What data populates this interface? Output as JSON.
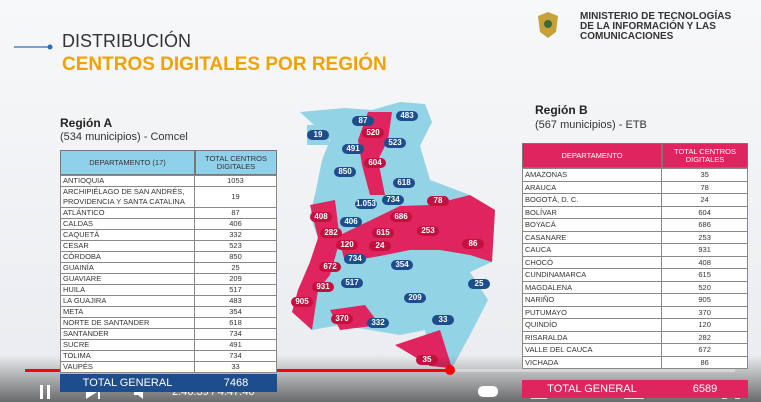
{
  "slide": {
    "title": "DISTRIBUCIÓN",
    "subtitle": "CENTROS DIGITALES POR REGIÓN",
    "ministry": [
      "MINISTERIO DE TECNOLOGÍAS",
      "DE LA INFORMACIÓN Y LAS",
      "COMUNICACIONES"
    ],
    "region_a": {
      "name": "Región A",
      "note": "(534 municipios) - Comcel",
      "header": [
        "DEPARTAMENTO (17)",
        "TOTAL CENTROS DIGITALES"
      ],
      "rows": [
        [
          "ANTIOQUIA",
          "1053"
        ],
        [
          "ARCHIPIÉLAGO DE SAN ANDRÉS, PROVIDENCIA Y SANTA CATALINA",
          "19"
        ],
        [
          "ATLÁNTICO",
          "87"
        ],
        [
          "CALDAS",
          "406"
        ],
        [
          "CAQUETÁ",
          "332"
        ],
        [
          "CESAR",
          "523"
        ],
        [
          "CÓRDOBA",
          "850"
        ],
        [
          "GUAINÍA",
          "25"
        ],
        [
          "GUAVIARE",
          "209"
        ],
        [
          "HUILA",
          "517"
        ],
        [
          "LA GUAJIRA",
          "483"
        ],
        [
          "META",
          "354"
        ],
        [
          "NORTE DE SANTANDER",
          "618"
        ],
        [
          "SANTANDER",
          "734"
        ],
        [
          "SUCRE",
          "491"
        ],
        [
          "TOLIMA",
          "734"
        ],
        [
          "VAUPÉS",
          "33"
        ]
      ],
      "total": [
        "TOTAL GENERAL",
        "7468"
      ]
    },
    "region_b": {
      "name": "Región B",
      "note": "(567 municipios) - ETB",
      "header": [
        "DEPARTAMENTO",
        "TOTAL CENTROS DIGITALES"
      ],
      "rows": [
        [
          "AMAZONAS",
          "35"
        ],
        [
          "ARAUCA",
          "78"
        ],
        [
          "BOGOTÁ, D. C.",
          "24"
        ],
        [
          "BOLÍVAR",
          "604"
        ],
        [
          "BOYACÁ",
          "686"
        ],
        [
          "CASANARE",
          "253"
        ],
        [
          "CAUCA",
          "931"
        ],
        [
          "CHOCÓ",
          "408"
        ],
        [
          "CUNDINAMARCA",
          "615"
        ],
        [
          "MAGDALENA",
          "520"
        ],
        [
          "NARIÑO",
          "905"
        ],
        [
          "PUTUMAYO",
          "370"
        ],
        [
          "QUINDÍO",
          "120"
        ],
        [
          "RISARALDA",
          "282"
        ],
        [
          "VALLE DEL CAUCA",
          "672"
        ],
        [
          "VICHADA",
          "86"
        ]
      ],
      "total": [
        "TOTAL GENERAL",
        "6589"
      ]
    },
    "map_labels": [
      {
        "text": "19",
        "region": "A"
      },
      {
        "text": "87",
        "region": "A"
      },
      {
        "text": "483",
        "region": "A"
      },
      {
        "text": "520",
        "region": "B"
      },
      {
        "text": "523",
        "region": "A"
      },
      {
        "text": "491",
        "region": "A"
      },
      {
        "text": "604",
        "region": "B"
      },
      {
        "text": "850",
        "region": "A"
      },
      {
        "text": "618",
        "region": "A"
      },
      {
        "text": "1.053",
        "region": "A"
      },
      {
        "text": "734",
        "region": "A"
      },
      {
        "text": "78",
        "region": "B"
      },
      {
        "text": "408",
        "region": "B"
      },
      {
        "text": "686",
        "region": "B"
      },
      {
        "text": "282",
        "region": "B"
      },
      {
        "text": "406",
        "region": "A"
      },
      {
        "text": "615",
        "region": "B"
      },
      {
        "text": "253",
        "region": "B"
      },
      {
        "text": "86",
        "region": "B"
      },
      {
        "text": "120",
        "region": "B"
      },
      {
        "text": "24",
        "region": "B"
      },
      {
        "text": "672",
        "region": "B"
      },
      {
        "text": "354",
        "region": "A"
      },
      {
        "text": "517",
        "region": "A"
      },
      {
        "text": "734",
        "region": "A"
      },
      {
        "text": "931",
        "region": "B"
      },
      {
        "text": "209",
        "region": "A"
      },
      {
        "text": "25",
        "region": "A"
      },
      {
        "text": "905",
        "region": "B"
      },
      {
        "text": "370",
        "region": "B"
      },
      {
        "text": "332",
        "region": "A"
      },
      {
        "text": "33",
        "region": "A"
      },
      {
        "text": "35",
        "region": "B"
      }
    ]
  },
  "player": {
    "time": "2:46:39 / 4:47:40"
  }
}
